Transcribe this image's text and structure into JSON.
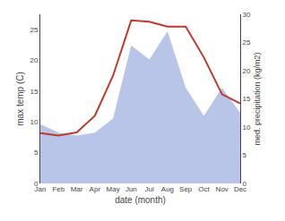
{
  "chart_data": {
    "type": "line",
    "categories": [
      "Jan",
      "Feb",
      "Mar",
      "Apr",
      "May",
      "Jun",
      "Jul",
      "Aug",
      "Sep",
      "Oct",
      "Nov",
      "Dec"
    ],
    "series": [
      {
        "type": "area",
        "axis": "y2",
        "color": "#b8c4e8",
        "values": [
          10.5,
          9.0,
          8.5,
          9.0,
          11.5,
          24.5,
          22.0,
          27.0,
          17.0,
          12.0,
          17.0,
          12.5
        ]
      },
      {
        "type": "line",
        "color": "#c0392b",
        "values": [
          8.2,
          7.8,
          8.3,
          11.0,
          17.5,
          26.5,
          26.3,
          25.5,
          25.5,
          20.5,
          14.5,
          13.0
        ]
      }
    ],
    "xlabel": "date (month)",
    "ylabel": "max temp (C)",
    "y2label": "med. precipitation (kg/m2)",
    "ylim": [
      0,
      27.5
    ],
    "yticks": [
      0,
      5,
      10,
      15,
      20,
      25
    ],
    "y2lim": [
      0,
      30
    ],
    "y2ticks": [
      0,
      5,
      10,
      15,
      20,
      25,
      30
    ],
    "grid": false
  }
}
